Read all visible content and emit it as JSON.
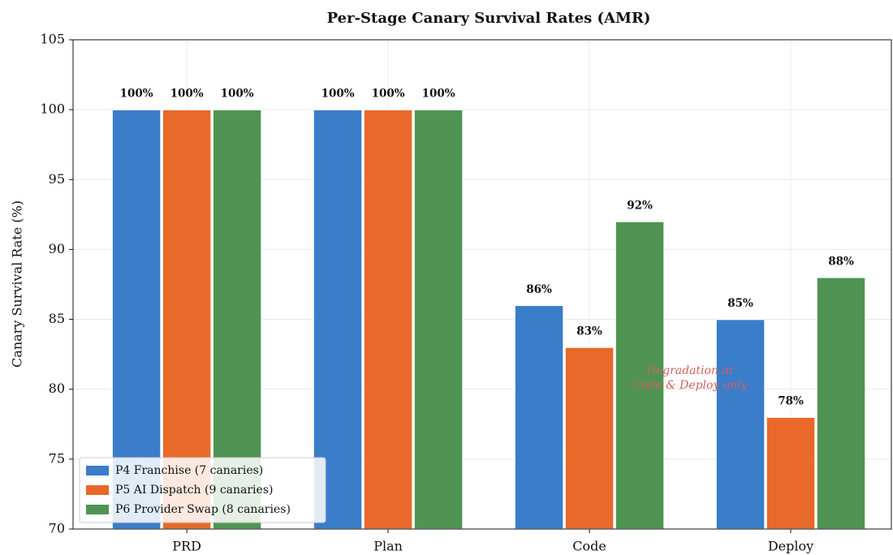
{
  "chart_data": {
    "type": "bar",
    "title": "Per-Stage Canary Survival Rates (AMR)",
    "y_label": "Canary Survival Rate (%)",
    "categories": [
      "PRD",
      "Plan",
      "Code",
      "Deploy"
    ],
    "series": [
      {
        "name": "P4 Franchise (7 canaries)",
        "color": "#3a7dc9",
        "values": [
          100,
          100,
          86,
          85
        ],
        "value_labels": [
          "100%",
          "100%",
          "86%",
          "85%"
        ]
      },
      {
        "name": "P5 AI Dispatch (9 canaries)",
        "color": "#e8692a",
        "values": [
          100,
          100,
          83,
          78
        ],
        "value_labels": [
          "100%",
          "100%",
          "83%",
          "78%"
        ]
      },
      {
        "name": "P6 Provider Swap (8 canaries)",
        "color": "#4f9453",
        "values": [
          100,
          100,
          92,
          88
        ],
        "value_labels": [
          "100%",
          "100%",
          "92%",
          "88%"
        ]
      }
    ],
    "annotation": [
      "Degradation at",
      "Code & Deploy only"
    ],
    "ylim": [
      70,
      105
    ],
    "yticks": [
      70,
      75,
      80,
      85,
      90,
      95,
      100,
      105
    ],
    "grid": true,
    "legend": "lower left"
  }
}
